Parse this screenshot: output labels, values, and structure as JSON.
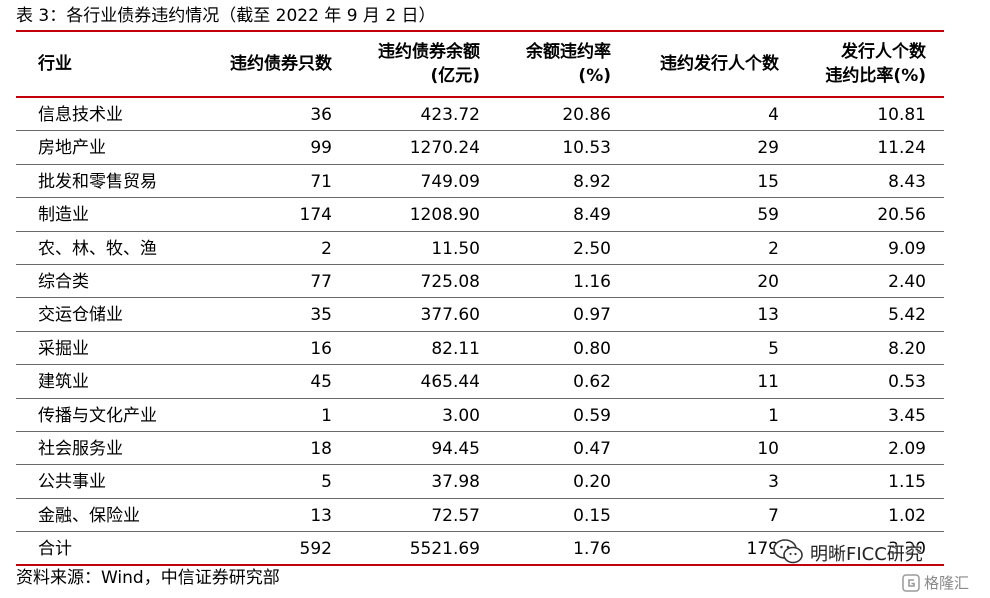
{
  "title": "表 3：各行业债券违约情况（截至 2022 年 9 月 2 日）",
  "headers": {
    "industry": [
      "行业"
    ],
    "bond_count": [
      "违约债券只数"
    ],
    "balance": [
      "违约债券余额",
      "(亿元)"
    ],
    "balance_rate": [
      "余额违约率",
      "(%)"
    ],
    "issuer_count": [
      "违约发行人个数"
    ],
    "issuer_ratio": [
      "发行人个数",
      "违约比率(%)"
    ]
  },
  "rows": [
    [
      "信息技术业",
      "36",
      "423.72",
      "20.86",
      "4",
      "10.81"
    ],
    [
      "房地产业",
      "99",
      "1270.24",
      "10.53",
      "29",
      "11.24"
    ],
    [
      "批发和零售贸易",
      "71",
      "749.09",
      "8.92",
      "15",
      "8.43"
    ],
    [
      "制造业",
      "174",
      "1208.90",
      "8.49",
      "59",
      "20.56"
    ],
    [
      "农、林、牧、渔",
      "2",
      "11.50",
      "2.50",
      "2",
      "9.09"
    ],
    [
      "综合类",
      "77",
      "725.08",
      "1.16",
      "20",
      "2.40"
    ],
    [
      "交运仓储业",
      "35",
      "377.60",
      "0.97",
      "13",
      "5.42"
    ],
    [
      "采掘业",
      "16",
      "82.11",
      "0.80",
      "5",
      "8.20"
    ],
    [
      "建筑业",
      "45",
      "465.44",
      "0.62",
      "11",
      "0.53"
    ],
    [
      "传播与文化产业",
      "1",
      "3.00",
      "0.59",
      "1",
      "3.45"
    ],
    [
      "社会服务业",
      "18",
      "94.45",
      "0.47",
      "10",
      "2.09"
    ],
    [
      "公共事业",
      "5",
      "37.98",
      "0.20",
      "3",
      "1.15"
    ],
    [
      "金融、保险业",
      "13",
      "72.57",
      "0.15",
      "7",
      "1.02"
    ],
    [
      "合计",
      "592",
      "5521.69",
      "1.76",
      "179",
      "3.30"
    ]
  ],
  "source": "资料来源：Wind，中信证券研究部",
  "watermark": {
    "wechat": "明晰FICC研究",
    "logo": "格隆汇",
    "icons": [
      "wechat-icon",
      "gelonghui-logo-icon"
    ]
  },
  "colors": {
    "rule": "#c0000a",
    "divider": "#6a6a6a"
  }
}
